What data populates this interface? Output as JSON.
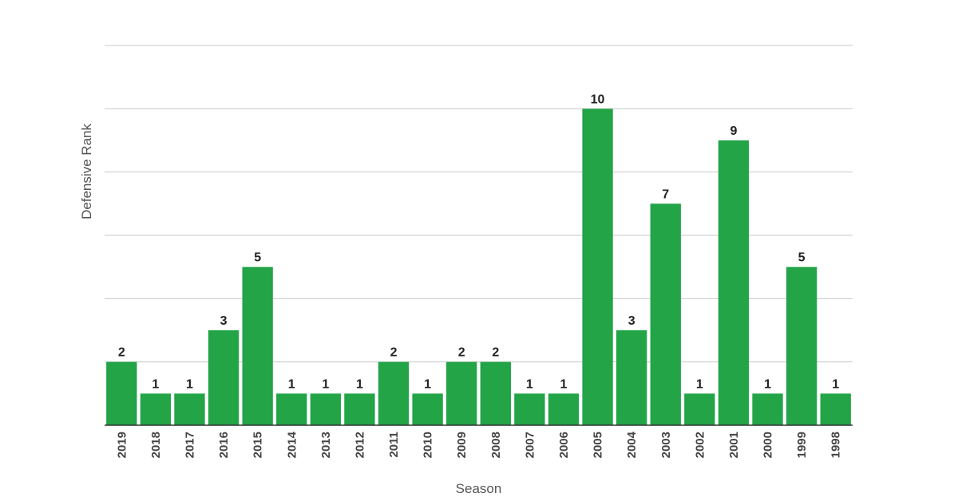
{
  "chart_data": {
    "type": "bar",
    "title": "",
    "xlabel": "Season",
    "ylabel": "Defensive Rank",
    "categories": [
      "2019",
      "2018",
      "2017",
      "2016",
      "2015",
      "2014",
      "2013",
      "2012",
      "2011",
      "2010",
      "2009",
      "2008",
      "2007",
      "2006",
      "2005",
      "2004",
      "2003",
      "2002",
      "2001",
      "2000",
      "1999",
      "1998"
    ],
    "values": [
      2,
      1,
      1,
      3,
      5,
      1,
      1,
      1,
      2,
      1,
      2,
      2,
      1,
      1,
      10,
      3,
      7,
      1,
      9,
      1,
      5,
      1
    ],
    "ylim": [
      0,
      12
    ],
    "grid": true,
    "bar_color": "#22a447",
    "legend": "none"
  }
}
